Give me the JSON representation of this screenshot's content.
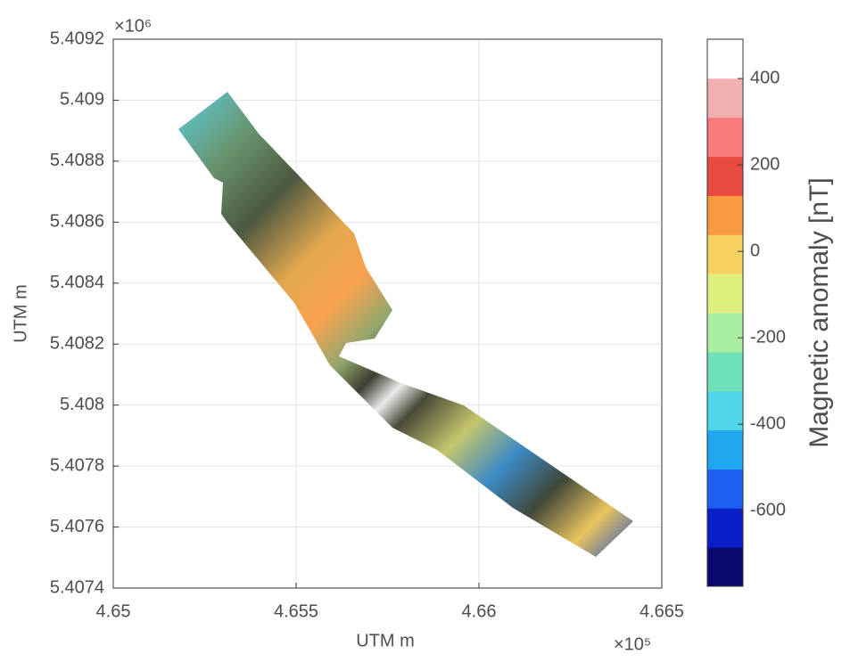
{
  "chart_data": {
    "type": "map",
    "x_label": "UTM m",
    "y_label": "UTM m",
    "x_exponent": "×10⁵",
    "y_exponent": "×10⁶",
    "xlim": [
      465000,
      466500
    ],
    "xticks": [
      {
        "value": 465000,
        "label": "4.65"
      },
      {
        "value": 465500,
        "label": "4.655"
      },
      {
        "value": 466000,
        "label": "4.66"
      },
      {
        "value": 466500,
        "label": "4.665"
      }
    ],
    "ylim": [
      5407400,
      5409200
    ],
    "yticks": [
      {
        "value": 5407400,
        "label": "5.4074"
      },
      {
        "value": 5407600,
        "label": "5.4076"
      },
      {
        "value": 5407800,
        "label": "5.4078"
      },
      {
        "value": 5408000,
        "label": "5.408"
      },
      {
        "value": 5408200,
        "label": "5.4082"
      },
      {
        "value": 5408400,
        "label": "5.4084"
      },
      {
        "value": 5408600,
        "label": "5.4086"
      },
      {
        "value": 5408800,
        "label": "5.4088"
      },
      {
        "value": 5409000,
        "label": "5.409"
      },
      {
        "value": 5409200,
        "label": "5.4092"
      }
    ],
    "grid": true,
    "colorbar": {
      "label": "Magnetic anomaly [nT]",
      "clim": [
        -775,
        491
      ],
      "ticks": [
        -600,
        -400,
        -200,
        0,
        200,
        400
      ],
      "colormap": [
        "#0a0a6e",
        "#0a1fc8",
        "#1e5ff0",
        "#1fa8f0",
        "#4fd6e8",
        "#6fe0b8",
        "#a8f0a0",
        "#e0ee80",
        "#f8d060",
        "#f89a40",
        "#e84a40",
        "#f87a7a",
        "#f0b0b0",
        "#ffffff"
      ]
    }
  }
}
